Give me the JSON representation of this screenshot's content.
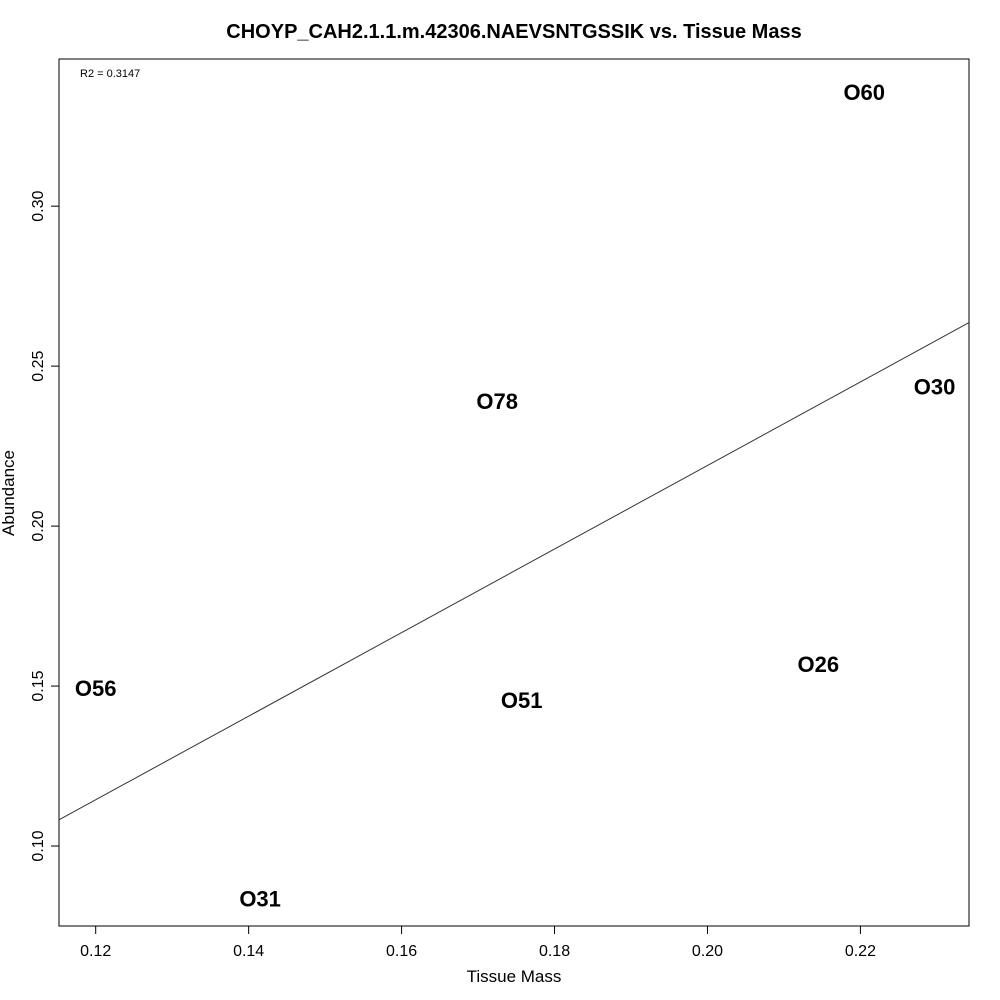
{
  "chart_data": {
    "type": "scatter",
    "title": "CHOYP_CAH2.1.1.m.42306.NAEVSNTGSSIK vs. Tissue Mass",
    "xlabel": "Tissue Mass",
    "ylabel": "Abundance",
    "xlim": [
      0.1152,
      0.2342
    ],
    "ylim": [
      0.075,
      0.346
    ],
    "x_ticks": [
      0.12,
      0.14,
      0.16,
      0.18,
      0.2,
      0.22
    ],
    "x_tick_labels": [
      "0.12",
      "0.14",
      "0.16",
      "0.18",
      "0.20",
      "0.22"
    ],
    "y_ticks": [
      0.1,
      0.15,
      0.2,
      0.25,
      0.3
    ],
    "y_tick_labels": [
      "0.10",
      "0.15",
      "0.20",
      "0.25",
      "0.30"
    ],
    "points": [
      {
        "label": "O60",
        "x": 0.2205,
        "y": 0.3355
      },
      {
        "label": "O30",
        "x": 0.2297,
        "y": 0.2435
      },
      {
        "label": "O78",
        "x": 0.1725,
        "y": 0.239
      },
      {
        "label": "O26",
        "x": 0.2145,
        "y": 0.1568
      },
      {
        "label": "O56",
        "x": 0.12,
        "y": 0.1492
      },
      {
        "label": "O51",
        "x": 0.1757,
        "y": 0.1455
      },
      {
        "label": "O31",
        "x": 0.1415,
        "y": 0.0835
      }
    ],
    "regression_line": {
      "x": [
        0.1152,
        0.2342
      ],
      "y": [
        0.1082,
        0.2636
      ]
    },
    "annotation": "R2 = 0.3147",
    "grid": false,
    "legend": "none"
  }
}
